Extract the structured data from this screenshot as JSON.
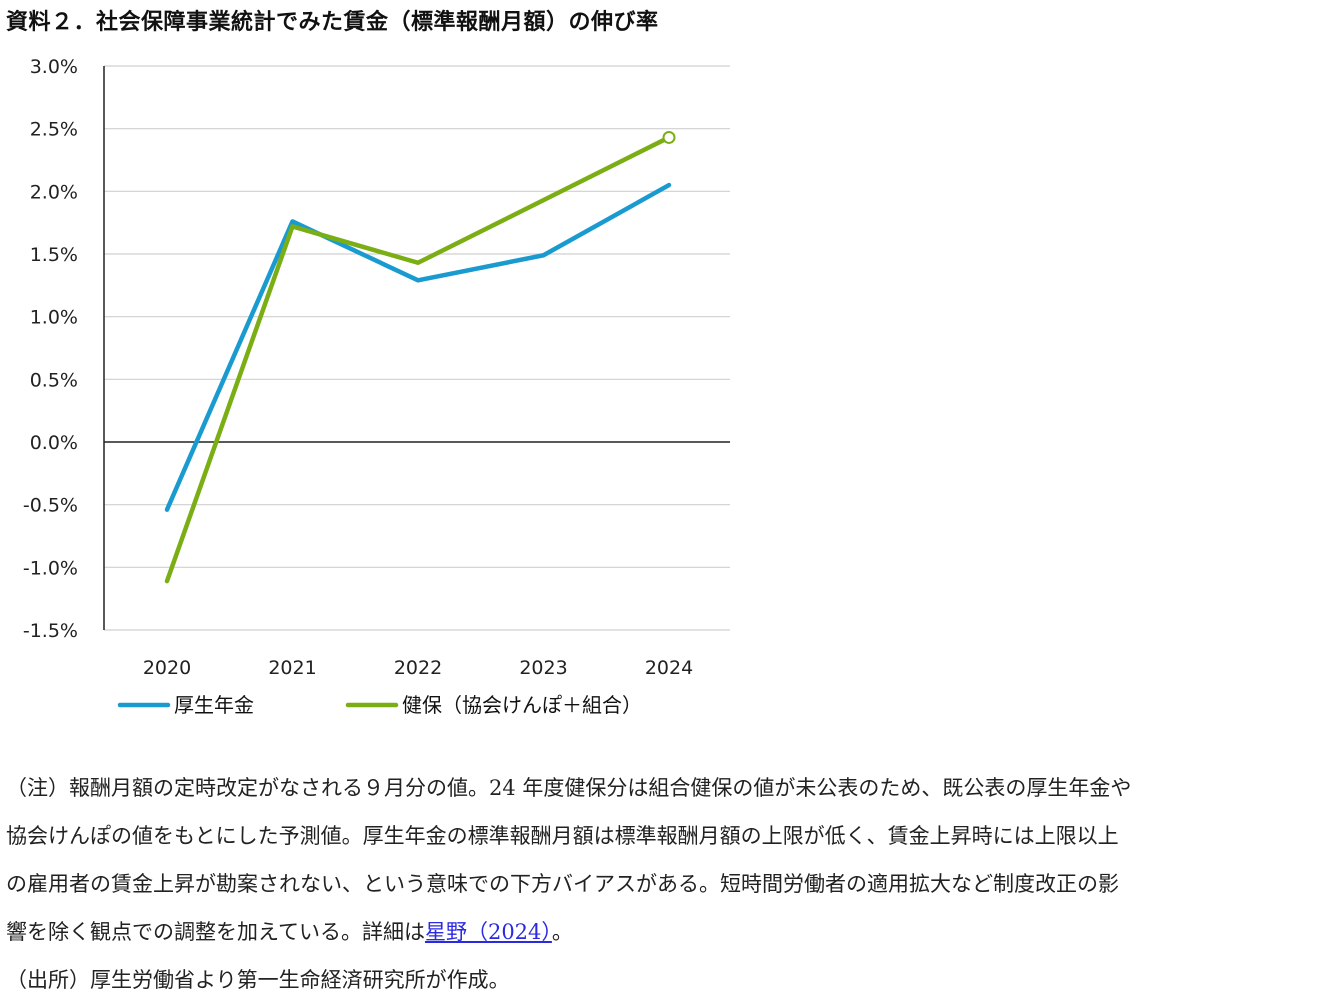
{
  "title": "資料２．社会保障事業統計でみた賃金（標準報酬月額）の伸び率",
  "chart_data": {
    "type": "line",
    "categories": [
      "2020",
      "2021",
      "2022",
      "2023",
      "2024"
    ],
    "y_tick_labels": [
      "3.0%",
      "2.5%",
      "2.0%",
      "1.5%",
      "1.0%",
      "0.5%",
      "0.0%",
      "-0.5%",
      "-1.0%",
      "-1.5%"
    ],
    "ylim": [
      -1.5,
      3.0
    ],
    "y_unit": "%",
    "grid": true,
    "legend_position": "bottom-left",
    "series": [
      {
        "name": "厚生年金",
        "color": "#1a9bd0",
        "values": [
          -0.54,
          1.76,
          1.29,
          1.49,
          2.05
        ]
      },
      {
        "name": "健保（協会けんぽ＋組合）",
        "color": "#7aae14",
        "values": [
          -1.11,
          1.72,
          1.43,
          null,
          2.43
        ],
        "note": "2024 value is a forecast (hollow marker)"
      }
    ]
  },
  "notes": {
    "line1": "（注）報酬月額の定時改定がなされる９月分の値。24 年度健保分は組合健保の値が未公表のため、既公表の厚生年金や",
    "line2": "協会けんぽの値をもとにした予測値。厚生年金の標準報酬月額は標準報酬月額の上限が低く、賃金上昇時には上限以上",
    "line3": "の雇用者の賃金上昇が勘案されない、という意味での下方バイアスがある。短時間労働者の適用拡大など制度改正の影",
    "line4_prefix": "響を除く観点での調整を加えている。詳細は",
    "line4_link": "星野（2024）",
    "line4_suffix": "。",
    "source": "（出所）厚生労働省より第一生命経済研究所が作成。"
  }
}
